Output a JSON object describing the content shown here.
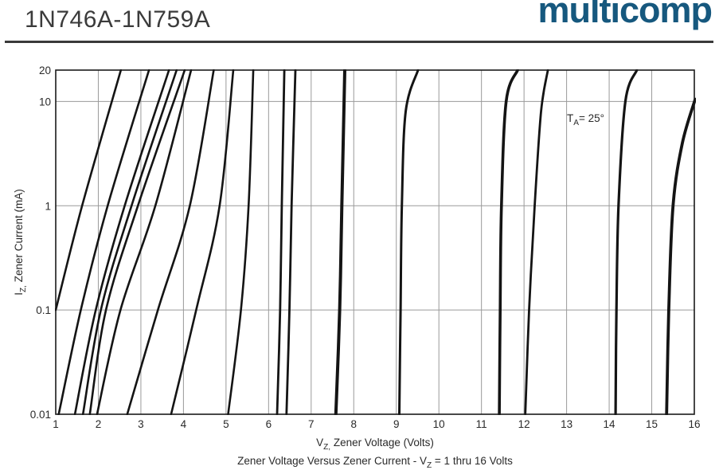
{
  "header": {
    "part_number": "1N746A-1N759A",
    "brand": "multicomp",
    "brand_color": "#16587e"
  },
  "chart_data": {
    "type": "line",
    "title": "Zener Voltage Versus Zener Current - V_{Z} = 1 thru 16 Volts",
    "xlabel": "V_{Z,}  Zener Voltage (Volts)",
    "ylabel": "I_{Z,}  Zener Current (mA)",
    "annotation": "T_{A}= 25°",
    "x_axis": {
      "scale": "linear",
      "min": 1,
      "max": 16,
      "ticks": [
        1,
        2,
        3,
        4,
        5,
        6,
        7,
        8,
        9,
        10,
        11,
        12,
        13,
        14,
        15,
        16
      ]
    },
    "y_axis": {
      "scale": "log",
      "min": 0.01,
      "max": 20,
      "ticks": [
        20,
        10,
        1,
        0.1,
        0.01
      ],
      "tick_labels": [
        "20",
        "10",
        "1",
        "0.1",
        "0.01"
      ]
    },
    "grid": {
      "x_lines": [
        2,
        3,
        4,
        5,
        6,
        7,
        8,
        9,
        10,
        11,
        12,
        13,
        14,
        15
      ],
      "y_lines": [
        10,
        1,
        0.1
      ]
    },
    "line_color": "#141414",
    "grid_color": "#9a9a9a",
    "frame_color": "#1a1a1a",
    "text_color": "#2a2a2a",
    "series": [
      {
        "name": "zener-curve-1",
        "width": 2.6,
        "points": [
          [
            1.0,
            0.1
          ],
          [
            1.62,
            1
          ],
          [
            2.53,
            20
          ]
        ]
      },
      {
        "name": "zener-curve-2",
        "width": 2.6,
        "points": [
          [
            1.07,
            0.01
          ],
          [
            1.59,
            0.1
          ],
          [
            2.22,
            1
          ],
          [
            3.19,
            20
          ]
        ]
      },
      {
        "name": "zener-curve-3",
        "width": 2.6,
        "points": [
          [
            1.45,
            0.01
          ],
          [
            1.94,
            0.1
          ],
          [
            2.62,
            1
          ],
          [
            3.66,
            20
          ]
        ]
      },
      {
        "name": "zener-curve-4",
        "width": 2.6,
        "points": [
          [
            1.64,
            0.01
          ],
          [
            2.06,
            0.1
          ],
          [
            2.78,
            1
          ],
          [
            3.84,
            20
          ]
        ]
      },
      {
        "name": "zener-curve-5",
        "width": 2.6,
        "points": [
          [
            1.8,
            0.01
          ],
          [
            2.18,
            0.1
          ],
          [
            2.93,
            1
          ],
          [
            4.03,
            20
          ]
        ]
      },
      {
        "name": "zener-curve-6",
        "width": 2.6,
        "points": [
          [
            1.97,
            0.01
          ],
          [
            2.52,
            0.1
          ],
          [
            3.34,
            1
          ],
          [
            4.18,
            20
          ]
        ]
      },
      {
        "name": "zener-curve-7",
        "width": 2.6,
        "points": [
          [
            2.68,
            0.01
          ],
          [
            3.4,
            0.1
          ],
          [
            4.15,
            1
          ],
          [
            4.71,
            20
          ]
        ]
      },
      {
        "name": "zener-curve-8",
        "width": 2.6,
        "points": [
          [
            3.71,
            0.01
          ],
          [
            4.3,
            0.1
          ],
          [
            4.85,
            1
          ],
          [
            5.17,
            20
          ]
        ]
      },
      {
        "name": "zener-curve-9",
        "width": 2.6,
        "points": [
          [
            5.05,
            0.01
          ],
          [
            5.35,
            0.1
          ],
          [
            5.53,
            1
          ],
          [
            5.64,
            20
          ]
        ]
      },
      {
        "name": "zener-curve-10",
        "width": 2.8,
        "points": [
          [
            6.2,
            0.01
          ],
          [
            6.27,
            0.1
          ],
          [
            6.31,
            1
          ],
          [
            6.37,
            20
          ]
        ]
      },
      {
        "name": "zener-curve-11",
        "width": 2.8,
        "points": [
          [
            6.42,
            0.01
          ],
          [
            6.49,
            0.1
          ],
          [
            6.54,
            1
          ],
          [
            6.63,
            20
          ]
        ]
      },
      {
        "name": "zener-curve-12",
        "width": 4.0,
        "points": [
          [
            7.58,
            0.01
          ],
          [
            7.67,
            0.1
          ],
          [
            7.72,
            1
          ],
          [
            7.79,
            20
          ]
        ]
      },
      {
        "name": "zener-curve-13",
        "width": 3.0,
        "points": [
          [
            9.07,
            0.01
          ],
          [
            9.1,
            0.1
          ],
          [
            9.13,
            1
          ],
          [
            9.22,
            8
          ],
          [
            9.51,
            20
          ]
        ]
      },
      {
        "name": "zener-curve-14",
        "width": 3.6,
        "points": [
          [
            11.42,
            0.01
          ],
          [
            11.44,
            0.1
          ],
          [
            11.47,
            1
          ],
          [
            11.58,
            10
          ],
          [
            11.85,
            20
          ]
        ]
      },
      {
        "name": "zener-curve-15",
        "width": 2.8,
        "points": [
          [
            12.03,
            0.01
          ],
          [
            12.12,
            0.1
          ],
          [
            12.25,
            1
          ],
          [
            12.4,
            8
          ],
          [
            12.56,
            20
          ]
        ]
      },
      {
        "name": "zener-curve-16",
        "width": 3.2,
        "points": [
          [
            14.15,
            0.01
          ],
          [
            14.17,
            0.1
          ],
          [
            14.22,
            1
          ],
          [
            14.38,
            10
          ],
          [
            14.65,
            20
          ]
        ]
      },
      {
        "name": "zener-curve-17",
        "width": 3.8,
        "points": [
          [
            15.35,
            0.01
          ],
          [
            15.4,
            0.1
          ],
          [
            15.5,
            1
          ],
          [
            15.72,
            4
          ],
          [
            16.02,
            10.5
          ]
        ]
      }
    ]
  }
}
